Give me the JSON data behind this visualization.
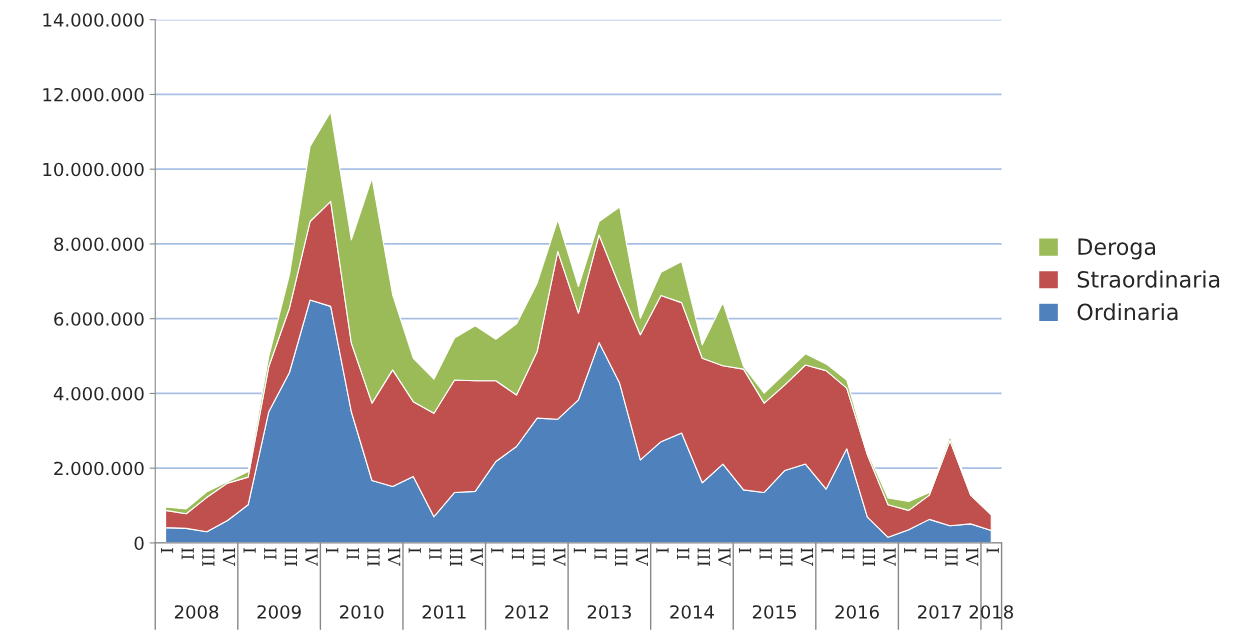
{
  "chart_data": {
    "type": "area",
    "stacked": true,
    "categories": [
      "I",
      "II",
      "III",
      "IV",
      "I",
      "II",
      "III",
      "IV",
      "I",
      "II",
      "III",
      "IV",
      "I",
      "II",
      "III",
      "IV",
      "I",
      "II",
      "III",
      "IV",
      "I",
      "II",
      "III",
      "IV",
      "I",
      "II",
      "III",
      "IV",
      "I",
      "II",
      "III",
      "IV",
      "I",
      "II",
      "III",
      "IV",
      "I",
      "II",
      "III",
      "IV",
      "I"
    ],
    "series": [
      {
        "name": "Ordinaria",
        "color": "#4f81bd",
        "values": [
          410000,
          390000,
          300000,
          600000,
          1020000,
          3510000,
          4560000,
          6500000,
          6330000,
          3510000,
          1670000,
          1510000,
          1780000,
          700000,
          1350000,
          1380000,
          2180000,
          2580000,
          3340000,
          3310000,
          3830000,
          5360000,
          4270000,
          2220000,
          2710000,
          2940000,
          1610000,
          2110000,
          1420000,
          1350000,
          1940000,
          2110000,
          1440000,
          2520000,
          690000,
          150000,
          350000,
          630000,
          460000,
          510000,
          330000
        ]
      },
      {
        "name": "Straordinaria",
        "color": "#c0504d",
        "values": [
          460000,
          390000,
          920000,
          1000000,
          740000,
          1210000,
          1720000,
          2100000,
          2810000,
          1840000,
          2070000,
          3120000,
          2000000,
          2770000,
          3010000,
          2960000,
          2160000,
          1380000,
          1780000,
          4490000,
          2320000,
          2880000,
          2590000,
          3350000,
          3910000,
          3490000,
          3330000,
          2630000,
          3230000,
          2390000,
          2290000,
          2650000,
          3170000,
          1620000,
          1670000,
          870000,
          520000,
          650000,
          2280000,
          770000,
          420000
        ]
      },
      {
        "name": "Deroga",
        "color": "#9bbb59",
        "values": [
          90000,
          130000,
          150000,
          40000,
          150000,
          270000,
          890000,
          2010000,
          2400000,
          2760000,
          6020000,
          2010000,
          1160000,
          910000,
          1120000,
          1470000,
          1110000,
          1900000,
          1830000,
          850000,
          710000,
          360000,
          2130000,
          440000,
          620000,
          1100000,
          360000,
          1690000,
          70000,
          270000,
          310000,
          300000,
          180000,
          220000,
          80000,
          180000,
          240000,
          70000,
          110000,
          50000,
          0
        ]
      }
    ],
    "ylim": [
      0,
      14000000
    ],
    "yticks": [
      {
        "value": 0,
        "label": "0"
      },
      {
        "value": 2000000,
        "label": "2.000.000"
      },
      {
        "value": 4000000,
        "label": "4.000.000"
      },
      {
        "value": 6000000,
        "label": "6.000.000"
      },
      {
        "value": 8000000,
        "label": "8.000.000"
      },
      {
        "value": 10000000,
        "label": "10.000.000"
      },
      {
        "value": 12000000,
        "label": "12.000.000"
      },
      {
        "value": 14000000,
        "label": "14.000.000"
      }
    ],
    "grid": "y",
    "legend": "right",
    "annotations": [
      "2008",
      "2009",
      "2010",
      "2011",
      "2012",
      "2013",
      "2014",
      "2015",
      "2016",
      "2017",
      "2018"
    ]
  }
}
